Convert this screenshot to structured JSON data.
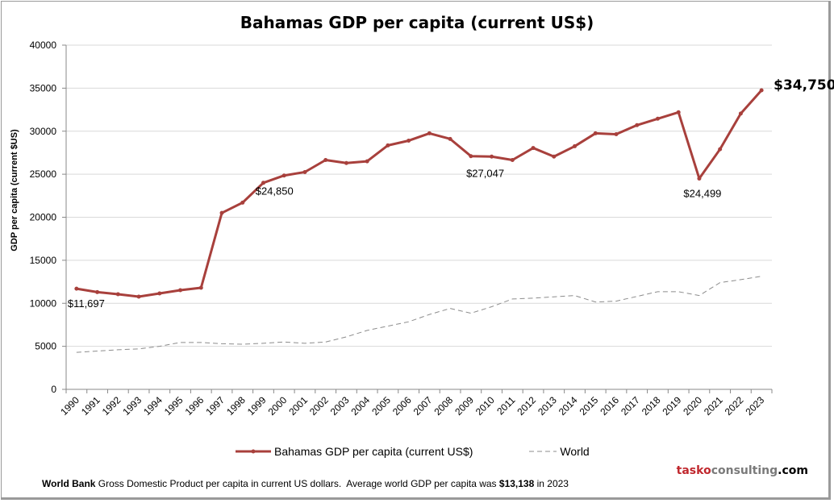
{
  "chart_data": {
    "type": "line",
    "title": "Bahamas GDP per capita (current US$)",
    "xlabel": "",
    "ylabel": "GDP per capita (current $US)",
    "ylim": [
      0,
      40000
    ],
    "yticks": [
      "0",
      "5000",
      "10000",
      "15000",
      "20000",
      "25000",
      "30000",
      "35000",
      "40000"
    ],
    "grid": true,
    "legend_placement": "bottom",
    "categories": [
      "1990",
      "1991",
      "1992",
      "1993",
      "1994",
      "1995",
      "1996",
      "1997",
      "1998",
      "1999",
      "2000",
      "2001",
      "2002",
      "2003",
      "2004",
      "2005",
      "2006",
      "2007",
      "2008",
      "2009",
      "2010",
      "2011",
      "2012",
      "2013",
      "2014",
      "2015",
      "2016",
      "2017",
      "2018",
      "2019",
      "2020",
      "2021",
      "2022",
      "2023"
    ],
    "series": [
      {
        "name": "Bahamas GDP per capita (current US$)",
        "color": "#a8403c",
        "style": "solid-with-markers",
        "values": [
          11697,
          11300,
          11050,
          10770,
          11150,
          11520,
          11800,
          20500,
          21700,
          24000,
          24850,
          25250,
          26650,
          26300,
          26500,
          28350,
          28900,
          29750,
          29100,
          27100,
          27047,
          26650,
          28050,
          27050,
          28250,
          29750,
          29650,
          30700,
          31450,
          32200,
          24499,
          27900,
          32050,
          34750
        ]
      },
      {
        "name": "World",
        "color": "#8c8c8c",
        "style": "dashed",
        "values": [
          4300,
          4450,
          4600,
          4700,
          5000,
          5450,
          5450,
          5300,
          5250,
          5350,
          5500,
          5350,
          5500,
          6100,
          6850,
          7350,
          7850,
          8700,
          9400,
          8850,
          9600,
          10500,
          10600,
          10750,
          10900,
          10150,
          10250,
          10800,
          11350,
          11350,
          10900,
          12400,
          12750,
          13138
        ]
      }
    ],
    "annotations": [
      {
        "category": "1990",
        "series": 0,
        "text": "$11,697"
      },
      {
        "category": "2000",
        "series": 0,
        "text": "$24,850"
      },
      {
        "category": "2010",
        "series": 0,
        "text": "$27,047"
      },
      {
        "category": "2020",
        "series": 0,
        "text": "$24,499"
      },
      {
        "category": "2023",
        "series": 0,
        "text": "$34,750"
      }
    ]
  },
  "footer": {
    "source": "World Bank",
    "text1": " Gross Domestic Product per capita in current US dollars.  Average world GDP per capita was ",
    "highlight": "$13,138",
    "text2": " in 2023"
  },
  "brand": {
    "part1": "tasko",
    "part2": "consulting",
    "part3": ".com",
    "color1": "#c0272d",
    "color2": "#7a7a7a",
    "color3": "#000000"
  }
}
